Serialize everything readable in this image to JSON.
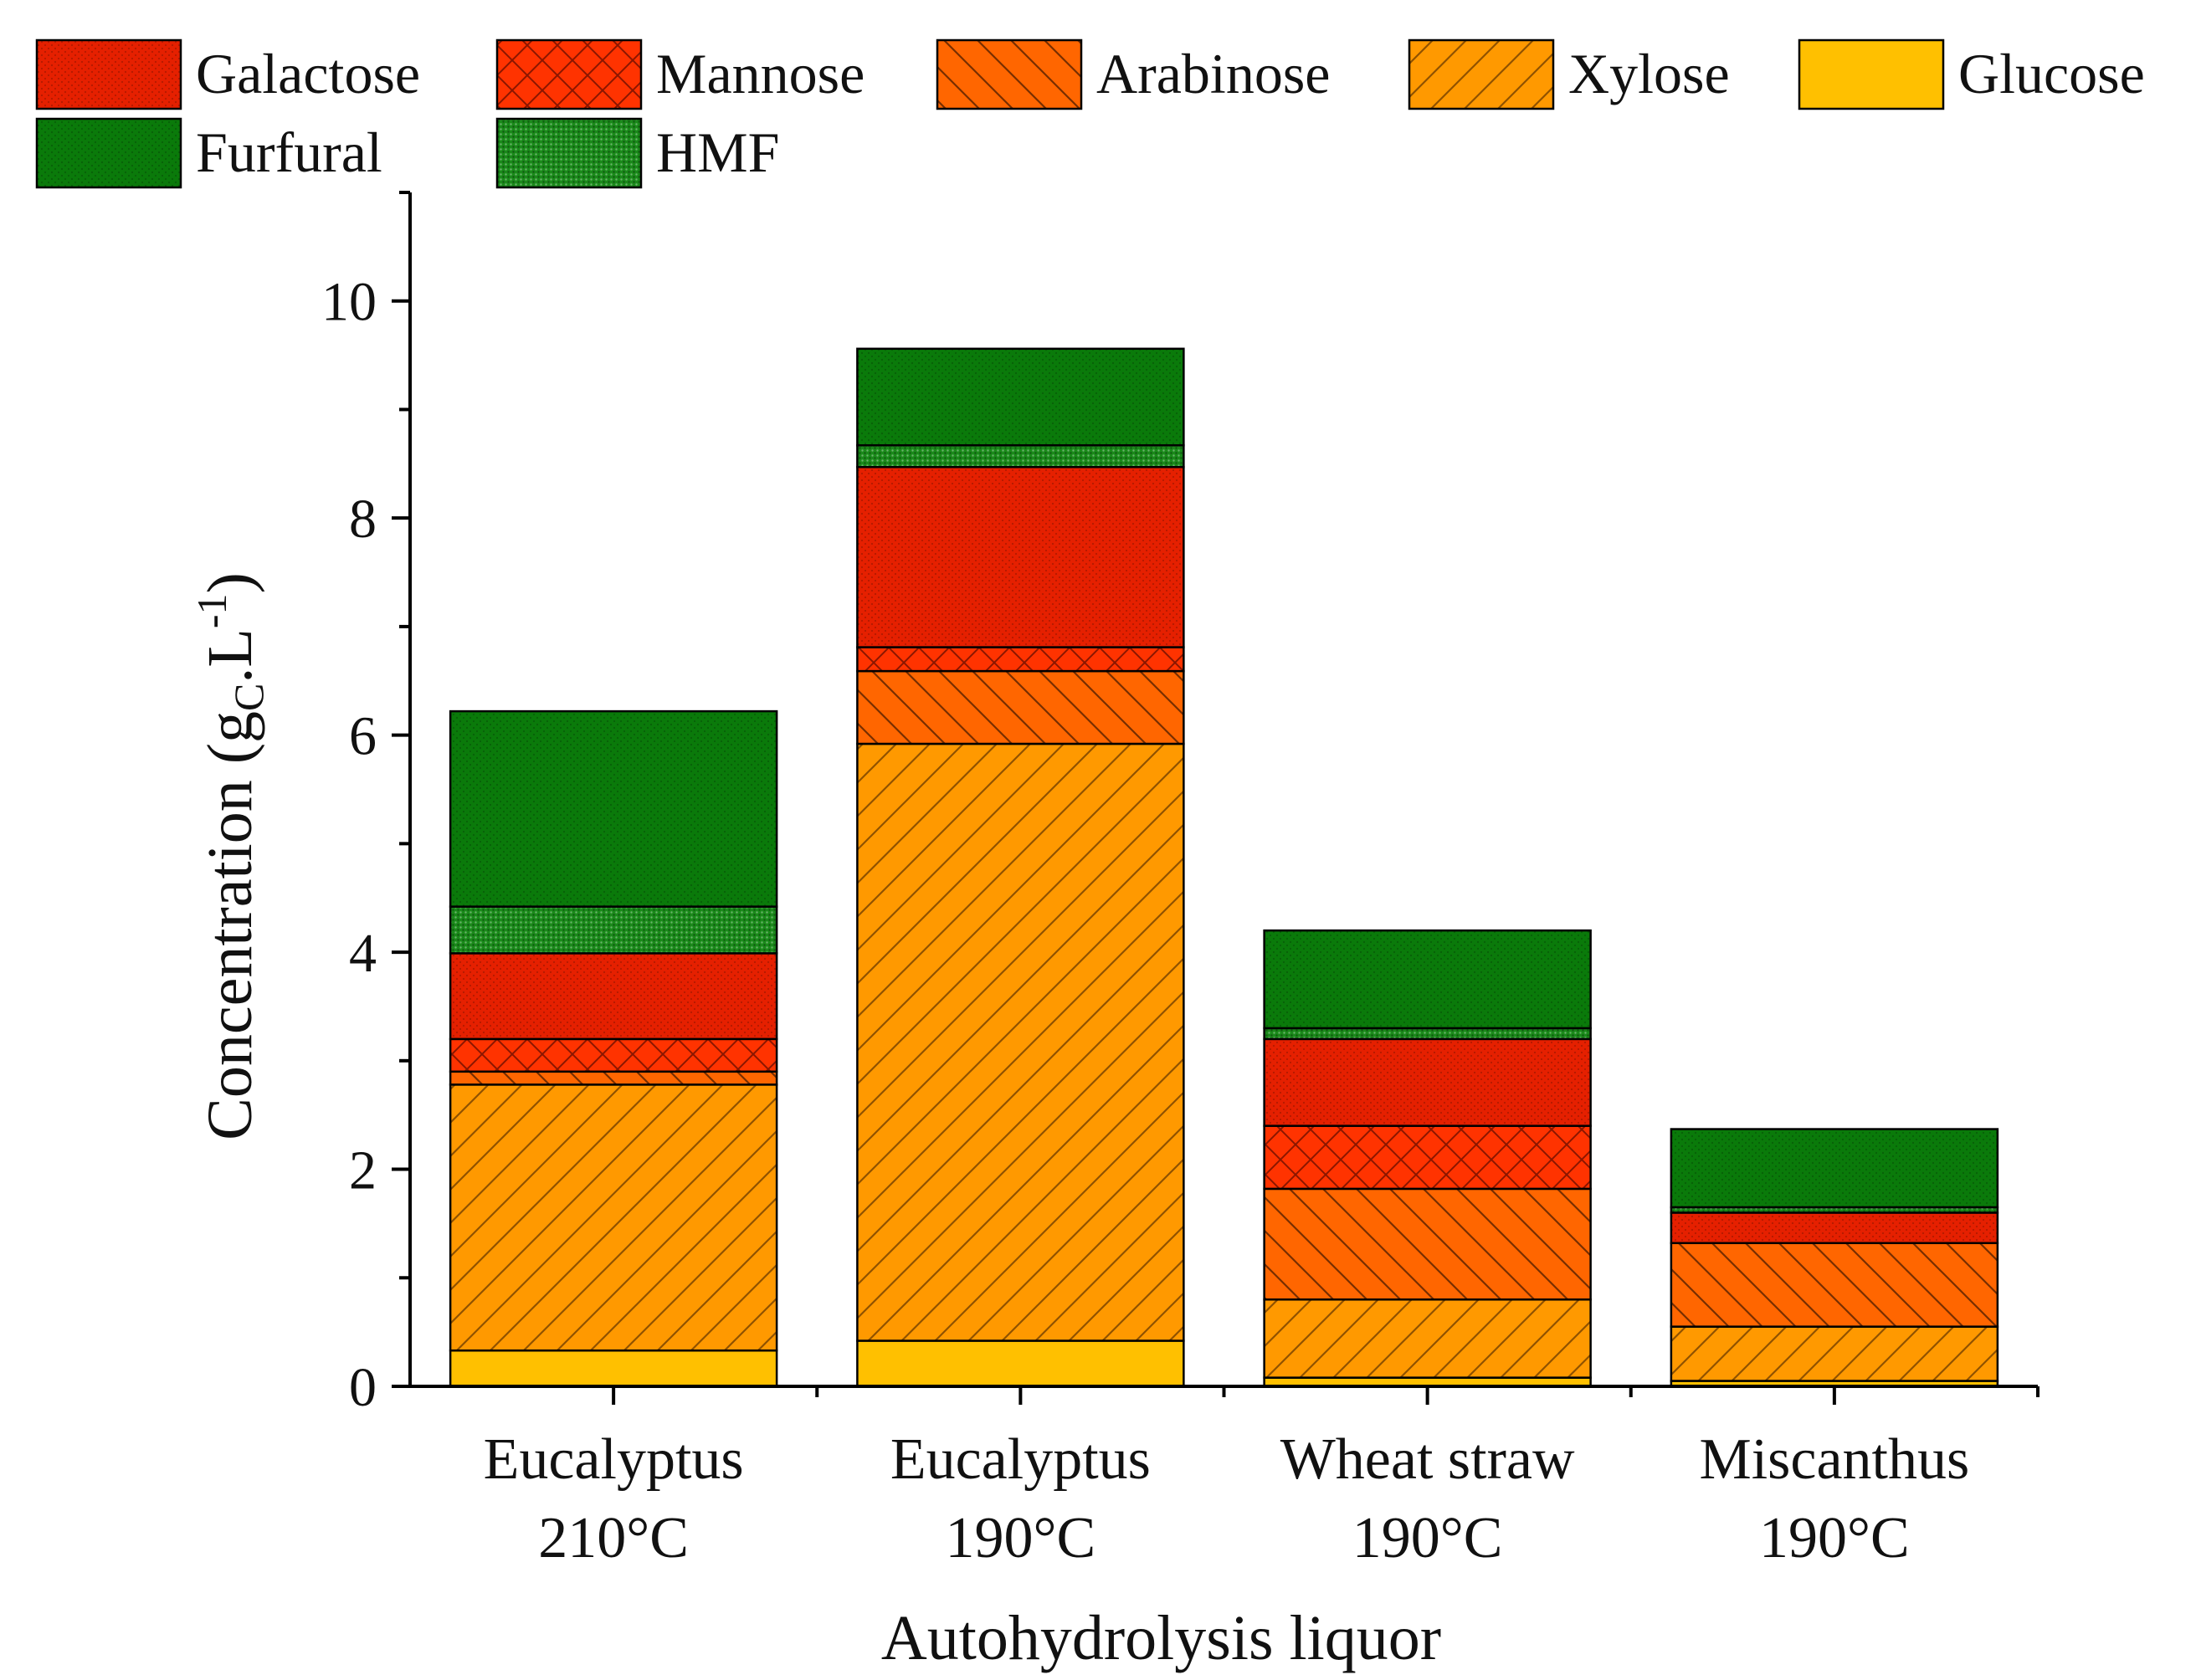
{
  "chart_data": {
    "type": "bar",
    "stacked": true,
    "title": "",
    "xlabel": "Autohydrolysis liquor",
    "ylabel": {
      "base": "Concentration (g",
      "subscript": "C",
      "middle": ".L",
      "superscript": "-1",
      "end": ")"
    },
    "ylim": [
      0,
      11
    ],
    "yticks": [
      0,
      2,
      4,
      6,
      8,
      10
    ],
    "grid": false,
    "legend_position": "top",
    "categories": [
      {
        "line1": "Eucalyptus",
        "line2": "210°C"
      },
      {
        "line1": "Eucalyptus",
        "line2": "190°C"
      },
      {
        "line1": "Wheat straw",
        "line2": "190°C"
      },
      {
        "line1": "Miscanthus",
        "line2": "190°C"
      }
    ],
    "series": [
      {
        "name": "Glucose",
        "color": "#FFC000",
        "pattern": "solid",
        "values": [
          0.33,
          0.42,
          0.08,
          0.05
        ]
      },
      {
        "name": "Xylose",
        "color": "#FF9900",
        "pattern": "diag-fwd",
        "values": [
          2.45,
          5.5,
          0.72,
          0.5
        ]
      },
      {
        "name": "Arabinose",
        "color": "#FF6600",
        "pattern": "diag-back",
        "values": [
          0.12,
          0.67,
          1.02,
          0.77
        ]
      },
      {
        "name": "Mannose",
        "color": "#FF3300",
        "pattern": "cross",
        "values": [
          0.3,
          0.22,
          0.58,
          0.0
        ]
      },
      {
        "name": "Galactose",
        "color": "#E52000",
        "pattern": "dots",
        "values": [
          0.79,
          1.66,
          0.8,
          0.28
        ]
      },
      {
        "name": "HMF",
        "color": "#1A8A1A",
        "pattern": "dots-dense",
        "values": [
          0.43,
          0.2,
          0.1,
          0.05
        ]
      },
      {
        "name": "Furfural",
        "color": "#0A7A0A",
        "pattern": "dots",
        "values": [
          1.8,
          0.89,
          0.9,
          0.72
        ]
      }
    ],
    "legend_order": [
      "Galactose",
      "Mannose",
      "Arabinose",
      "Xylose",
      "Glucose",
      "Furfural",
      "HMF"
    ]
  }
}
